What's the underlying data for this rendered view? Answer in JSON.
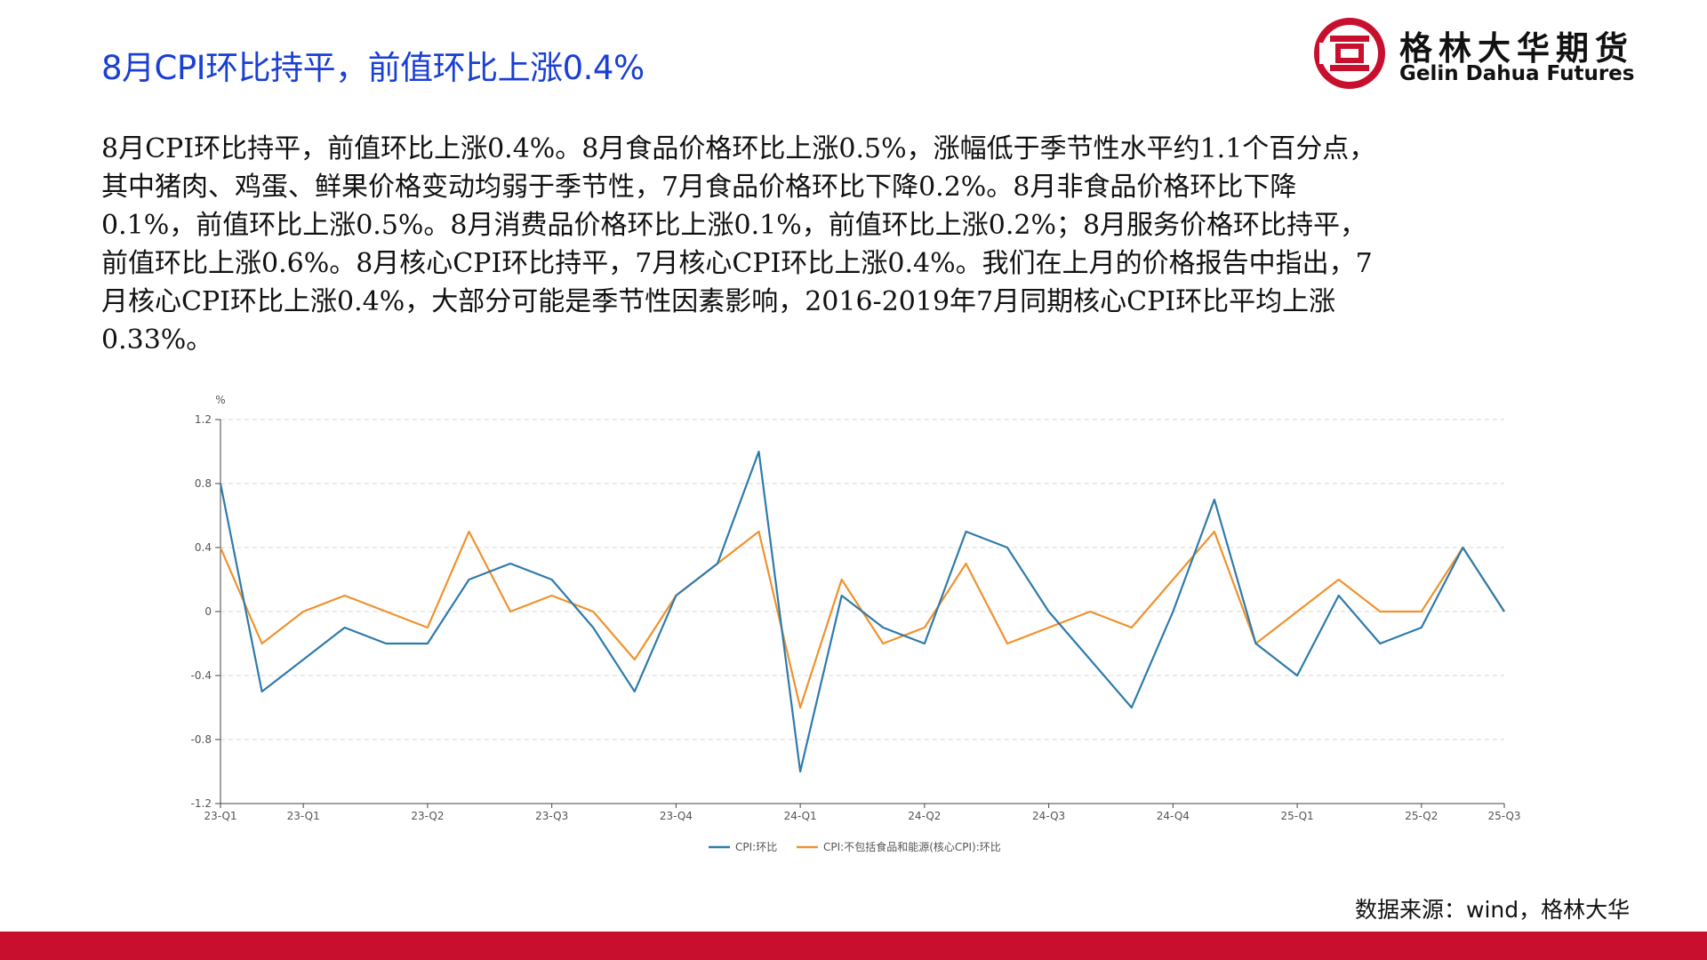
{
  "header": {
    "title": "8月CPI环比持平，前值环比上涨0.4%",
    "logo_cn": "格林大华期货",
    "logo_en": "Gelin Dahua Futures"
  },
  "body_lines": [
    "8月CPI环比持平，前值环比上涨0.4%。8月食品价格环比上涨0.5%，涨幅低于季节性水平约1.1个百分点，",
    "其中猪肉、鸡蛋、鲜果价格变动均弱于季节性，7月食品价格环比下降0.2%。8月非食品价格环比下降",
    "0.1%，前值环比上涨0.5%。8月消费品价格环比上涨0.1%，前值环比上涨0.2%；8月服务价格环比持平，",
    "前值环比上涨0.6%。8月核心CPI环比持平，7月核心CPI环比上涨0.4%。我们在上月的价格报告中指出，7",
    "月核心CPI环比上涨0.4%，大部分可能是季节性因素影响，2016-2019年7月同期核心CPI环比平均上涨",
    "0.33%。"
  ],
  "source": "数据来源：wind，格林大华",
  "colors": {
    "title": "#1a3fd4",
    "series_cpi": "#2e7bab",
    "series_core": "#f0922e",
    "bottom_bar": "#c8102e",
    "logo_red": "#c8102e"
  },
  "chart_data": {
    "type": "line",
    "ylabel": "%",
    "ylim": [
      -1.2,
      1.2
    ],
    "yticks": [
      "1.2",
      "0.8",
      "0.4",
      "0",
      "-0.4",
      "-0.8",
      "-1.2"
    ],
    "xticks": [
      "23-Q1",
      "23-Q1",
      "23-Q2",
      "23-Q3",
      "23-Q4",
      "24-Q1",
      "24-Q2",
      "24-Q3",
      "24-Q4",
      "25-Q1",
      "25-Q2",
      "25-Q3"
    ],
    "x": [
      "2023-01",
      "2023-02",
      "2023-03",
      "2023-04",
      "2023-05",
      "2023-06",
      "2023-07",
      "2023-08",
      "2023-09",
      "2023-10",
      "2023-11",
      "2023-12",
      "2024-01",
      "2024-02",
      "2024-03",
      "2024-04",
      "2024-05",
      "2024-06",
      "2024-07",
      "2024-08",
      "2024-09",
      "2024-10",
      "2024-11",
      "2024-12",
      "2025-01",
      "2025-02",
      "2025-03",
      "2025-04",
      "2025-05",
      "2025-06",
      "2025-07",
      "2025-08"
    ],
    "grid": true,
    "legend_position": "bottom-center",
    "series": [
      {
        "name": "CPI:环比",
        "values": [
          0.8,
          -0.5,
          -0.3,
          -0.1,
          -0.2,
          -0.2,
          0.2,
          0.3,
          0.2,
          -0.1,
          -0.5,
          0.1,
          0.3,
          1.0,
          -1.0,
          0.1,
          -0.1,
          -0.2,
          0.5,
          0.4,
          0.0,
          -0.3,
          -0.6,
          0.0,
          0.7,
          -0.2,
          -0.4,
          0.1,
          -0.2,
          -0.1,
          0.4,
          0.0
        ]
      },
      {
        "name": "CPI:不包括食品和能源(核心CPI):环比",
        "values": [
          0.4,
          -0.2,
          0.0,
          0.1,
          0.0,
          -0.1,
          0.5,
          0.0,
          0.1,
          0.0,
          -0.3,
          0.1,
          0.3,
          0.5,
          -0.6,
          0.2,
          -0.2,
          -0.1,
          0.3,
          -0.2,
          -0.1,
          0.0,
          -0.1,
          0.2,
          0.5,
          -0.2,
          0.0,
          0.2,
          0.0,
          0.0,
          0.4,
          0.0
        ]
      }
    ]
  }
}
